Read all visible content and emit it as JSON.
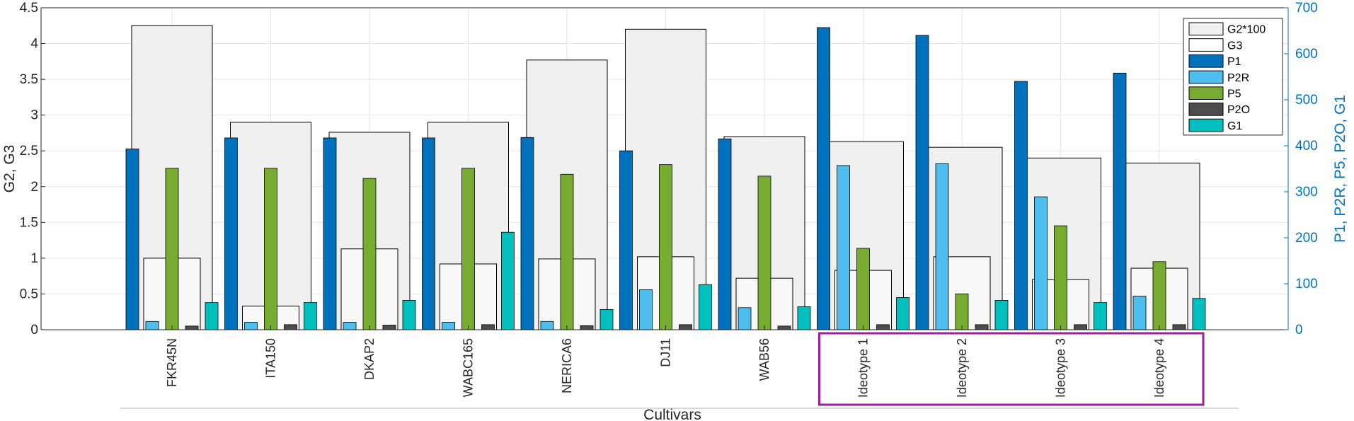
{
  "chart_data": {
    "type": "bar",
    "xlabel": "Cultivars",
    "ylabel_left": "G2, G3",
    "ylabel_right": "P1, P2R, P5, P2O, G1",
    "ylim_left": [
      0,
      4.5
    ],
    "ylim_right": [
      0,
      700
    ],
    "yticks_left": [
      "0",
      "0.5",
      "1",
      "1.5",
      "2",
      "2.5",
      "3",
      "3.5",
      "4",
      "4.5"
    ],
    "yticks_right": [
      "0",
      "100",
      "200",
      "300",
      "400",
      "500",
      "600",
      "700"
    ],
    "categories": [
      "FKR45N",
      "ITA150",
      "DKAP2",
      "WABC165",
      "NERICA6",
      "DJ11",
      "WAB56",
      "Ideotype 1",
      "Ideotype 2",
      "Ideotype 3",
      "Ideotype 4"
    ],
    "highlighted_categories": [
      "Ideotype 1",
      "Ideotype 2",
      "Ideotype 3",
      "Ideotype 4"
    ],
    "grid": true,
    "legend_position": "top-right",
    "series": [
      {
        "name": "G2*100",
        "axis": "left",
        "color": "#F0F0F0",
        "values": [
          4.25,
          2.9,
          2.76,
          2.9,
          3.77,
          4.2,
          2.7,
          2.63,
          2.55,
          2.4,
          2.33
        ]
      },
      {
        "name": "G3",
        "axis": "left",
        "color": "#FFFFFF",
        "values": [
          1.0,
          0.33,
          1.13,
          0.92,
          0.99,
          1.02,
          0.72,
          0.83,
          1.02,
          0.7,
          0.86
        ]
      },
      {
        "name": "P1",
        "axis": "right",
        "color": "#0072BD",
        "values": [
          393,
          417,
          417,
          417,
          418,
          389,
          415,
          657,
          640,
          540,
          558
        ]
      },
      {
        "name": "P2R",
        "axis": "right",
        "color": "#4DBEEE",
        "values": [
          18,
          16,
          16,
          16,
          18,
          87,
          48,
          357,
          361,
          289,
          73
        ]
      },
      {
        "name": "P5",
        "axis": "right",
        "color": "#77AC30",
        "values": [
          351,
          351,
          329,
          351,
          338,
          359,
          334,
          177,
          78,
          226,
          148
        ]
      },
      {
        "name": "P2O",
        "axis": "right",
        "color": "#4D4D4D",
        "values": [
          8,
          11,
          10,
          11,
          9,
          11,
          8,
          11,
          11,
          11,
          11
        ]
      },
      {
        "name": "G1",
        "axis": "right",
        "color": "#00BFBF",
        "values": [
          59,
          59,
          64,
          212,
          44,
          98,
          50,
          70,
          64,
          59,
          68
        ]
      }
    ]
  }
}
